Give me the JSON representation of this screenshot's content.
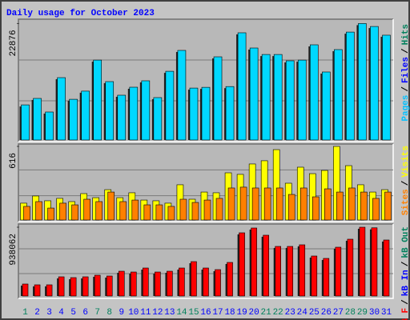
{
  "title": "Daily usage for October 2023",
  "separator": "/",
  "categories": [
    1,
    2,
    3,
    4,
    5,
    6,
    7,
    8,
    9,
    10,
    11,
    12,
    13,
    14,
    15,
    16,
    17,
    18,
    19,
    20,
    21,
    22,
    23,
    24,
    25,
    26,
    27,
    28,
    29,
    30,
    31
  ],
  "weekends": [
    1,
    7,
    8,
    14,
    15,
    21,
    22,
    28,
    29
  ],
  "weekday_color": "#0000ff",
  "weekend_color": "#00805c",
  "chart_data": [
    {
      "type": "bar",
      "ylim": [
        0,
        23100
      ],
      "yticks": [
        22876
      ],
      "legend": [
        {
          "label": "Pages",
          "color": "#00c0ff"
        },
        {
          "label": "Files",
          "color": "#0000ff"
        },
        {
          "label": "Hits",
          "color": "#00805c"
        }
      ],
      "series": [
        {
          "color": "#00d8ff",
          "values": [
            6900,
            8170,
            5500,
            12250,
            8000,
            9600,
            15700,
            11470,
            8800,
            10370,
            11630,
            8330,
            13500,
            17600,
            10200,
            10350,
            16340,
            10500,
            21060,
            18070,
            16800,
            16800,
            15560,
            15700,
            18700,
            13360,
            17760,
            21200,
            22876,
            22300,
            20590
          ]
        }
      ]
    },
    {
      "type": "bar",
      "ylim": [
        0,
        616
      ],
      "yticks": [
        616
      ],
      "legend": [
        {
          "label": "Sites",
          "color": "#ff8000"
        },
        {
          "label": "Visits",
          "color": "#ffff00"
        }
      ],
      "series": [
        {
          "color": "#ffff00",
          "values": [
            141,
            201,
            161,
            181,
            154,
            221,
            187,
            254,
            187,
            228,
            167,
            161,
            141,
            295,
            174,
            234,
            228,
            395,
            382,
            469,
            496,
            589,
            308,
            442,
            388,
            415,
            616,
            455,
            295,
            234,
            254
          ]
        },
        {
          "color": "#ff8000",
          "values": [
            114,
            154,
            100,
            141,
            127,
            174,
            154,
            234,
            154,
            167,
            127,
            127,
            114,
            174,
            147,
            167,
            181,
            268,
            275,
            268,
            268,
            268,
            214,
            268,
            194,
            261,
            234,
            268,
            234,
            181,
            234
          ]
        }
      ]
    },
    {
      "type": "bar",
      "ylim": [
        0,
        938062
      ],
      "yticks": [
        938062
      ],
      "legend": [
        {
          "label": "kB F",
          "color": "#ff0000"
        },
        {
          "label": "kB In",
          "color": "#0000ff"
        },
        {
          "label": "kB Out",
          "color": "#00805c"
        }
      ],
      "series": [
        {
          "color": "#ff0000",
          "values": [
            163600,
            152700,
            152700,
            261800,
            250900,
            261800,
            283600,
            272700,
            338100,
            327200,
            381800,
            327200,
            338100,
            381800,
            469000,
            381800,
            360000,
            458100,
            861700,
            927200,
            829000,
            676300,
            676300,
            698100,
            545400,
            512700,
            665400,
            774500,
            938062,
            930000,
            763600
          ]
        }
      ]
    }
  ]
}
